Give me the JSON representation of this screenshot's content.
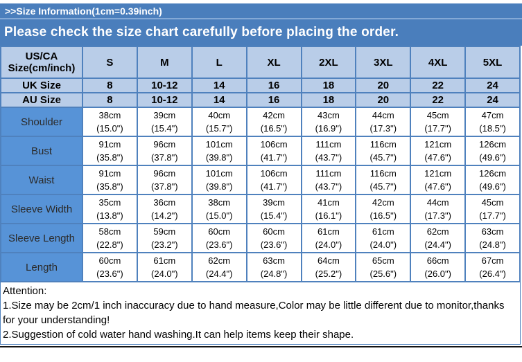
{
  "header": {
    "size_info_label": ">>Size Information(1cm=0.39inch)",
    "notice": "Please check the size chart carefully before placing the order."
  },
  "colors": {
    "banner_blue": "#4a7ebc",
    "banner_divider": "#84a9d6",
    "header_cell_blue": "#b9cde8",
    "measure_label_blue": "#5793d7",
    "grid_border_blue": "#4f81bd",
    "text_white": "#ffffff",
    "text_black": "#000000"
  },
  "table": {
    "corner_header": "US/CA Size(cm/inch)",
    "size_columns": [
      "S",
      "M",
      "L",
      "XL",
      "2XL",
      "3XL",
      "4XL",
      "5XL"
    ],
    "uk_row": {
      "label": "UK Size",
      "values": [
        "8",
        "10-12",
        "14",
        "16",
        "18",
        "20",
        "22",
        "24"
      ]
    },
    "au_row": {
      "label": "AU Size",
      "values": [
        "8",
        "10-12",
        "14",
        "16",
        "18",
        "20",
        "22",
        "24"
      ]
    },
    "measurement_rows": [
      {
        "label": "Shoulder",
        "cm": [
          "38cm",
          "39cm",
          "40cm",
          "42cm",
          "43cm",
          "44cm",
          "45cm",
          "47cm"
        ],
        "inch": [
          "(15.0\")",
          "(15.4\")",
          "(15.7\")",
          "(16.5\")",
          "(16.9\")",
          "(17.3\")",
          "(17.7\")",
          "(18.5\")"
        ]
      },
      {
        "label": "Bust",
        "cm": [
          "91cm",
          "96cm",
          "101cm",
          "106cm",
          "111cm",
          "116cm",
          "121cm",
          "126cm"
        ],
        "inch": [
          "(35.8\")",
          "(37.8\")",
          "(39.8\")",
          "(41.7\")",
          "(43.7\")",
          "(45.7\")",
          "(47.6\")",
          "(49.6\")"
        ]
      },
      {
        "label": "Waist",
        "cm": [
          "91cm",
          "96cm",
          "101cm",
          "106cm",
          "111cm",
          "116cm",
          "121cm",
          "126cm"
        ],
        "inch": [
          "(35.8\")",
          "(37.8\")",
          "(39.8\")",
          "(41.7\")",
          "(43.7\")",
          "(45.7\")",
          "(47.6\")",
          "(49.6\")"
        ]
      },
      {
        "label": "Sleeve Width",
        "cm": [
          "35cm",
          "36cm",
          "38cm",
          "39cm",
          "41cm",
          "42cm",
          "44cm",
          "45cm"
        ],
        "inch": [
          "(13.8\")",
          "(14.2\")",
          "(15.0\")",
          "(15.4\")",
          "(16.1\")",
          "(16.5\")",
          "(17.3\")",
          "(17.7\")"
        ]
      },
      {
        "label": "Sleeve Length",
        "cm": [
          "58cm",
          "59cm",
          "60cm",
          "60cm",
          "61cm",
          "61cm",
          "62cm",
          "63cm"
        ],
        "inch": [
          "(22.8\")",
          "(23.2\")",
          "(23.6\")",
          "(23.6\")",
          "(24.0\")",
          "(24.0\")",
          "(24.4\")",
          "(24.8\")"
        ]
      },
      {
        "label": "Length",
        "cm": [
          "60cm",
          "61cm",
          "62cm",
          "63cm",
          "64cm",
          "65cm",
          "66cm",
          "67cm"
        ],
        "inch": [
          "(23.6\")",
          "(24.0\")",
          "(24.4\")",
          "(24.8\")",
          "(25.2\")",
          "(25.6\")",
          "(26.0\")",
          "(26.4\")"
        ]
      }
    ]
  },
  "attention": {
    "title": "Attention:",
    "line1": "1.Size may be 2cm/1 inch inaccuracy due to hand measure,Color may be little different due to monitor,thanks for your understanding!",
    "line2": "2.Suggestion of cold water hand washing.It can help items keep their shape."
  }
}
